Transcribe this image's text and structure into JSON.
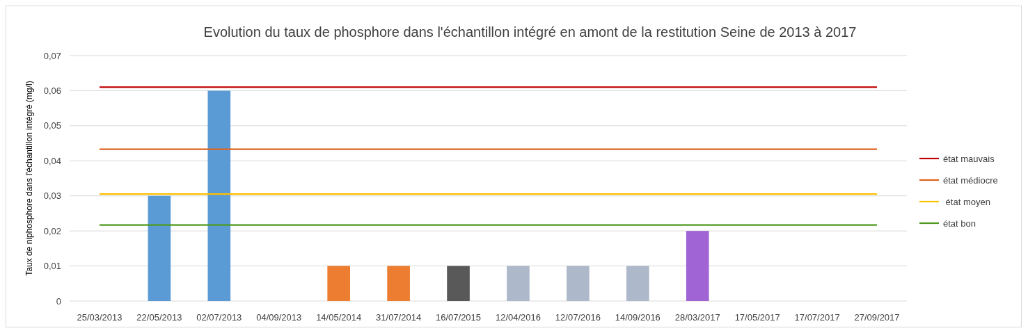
{
  "chart_data": {
    "type": "bar",
    "title": "Evolution du taux de phosphore dans l'échantillon intégré en amont de la restitution Seine de 2013 à 2017",
    "ylabel": "Taux de niphosphore dans l'échantillon intégré (mg/l)",
    "categories": [
      "25/03/2013",
      "22/05/2013",
      "02/07/2013",
      "04/09/2013",
      "14/05/2014",
      "31/07/2014",
      "16/07/2015",
      "12/04/2016",
      "12/07/2016",
      "14/09/2016",
      "28/03/2017",
      "17/05/2017",
      "17/07/2017",
      "27/09/2017"
    ],
    "series": [
      {
        "values": [
          0,
          0.03,
          0.06,
          0,
          0.01,
          0.01,
          0.01,
          0.01,
          0.01,
          0.01,
          0.02,
          0,
          0,
          0
        ],
        "colors": [
          "#5b9bd5",
          "#5b9bd5",
          "#5b9bd5",
          "#5b9bd5",
          "#ed7d31",
          "#ed7d31",
          "#595959",
          "#adb9ca",
          "#adb9ca",
          "#adb9ca",
          "#a064d4",
          "#a064d4",
          "#a064d4",
          "#a064d4"
        ]
      },
      {
        "type": "line",
        "name": "état mauvais",
        "color": "#c00000",
        "values": [
          0.061,
          0.061,
          0.061,
          0.061,
          0.061,
          0.061,
          0.061,
          0.061,
          0.061,
          0.061,
          0.061,
          0.061,
          0.061,
          0.061
        ]
      },
      {
        "type": "line",
        "name": "état médiocre",
        "color": "#e0621b",
        "values": [
          0.0433,
          0.0433,
          0.0433,
          0.0433,
          0.0433,
          0.0433,
          0.0433,
          0.0433,
          0.0433,
          0.0433,
          0.0433,
          0.0433,
          0.0433,
          0.0433
        ]
      },
      {
        "type": "line",
        "name": " état moyen",
        "color": "#ffc000",
        "values": [
          0.0305,
          0.0305,
          0.0305,
          0.0305,
          0.0305,
          0.0305,
          0.0305,
          0.0305,
          0.0305,
          0.0305,
          0.0305,
          0.0305,
          0.0305,
          0.0305
        ]
      },
      {
        "type": "line",
        "name": "état bon",
        "color": "#4e9a1e",
        "values": [
          0.0217,
          0.0217,
          0.0217,
          0.0217,
          0.0217,
          0.0217,
          0.0217,
          0.0217,
          0.0217,
          0.0217,
          0.0217,
          0.0217,
          0.0217,
          0.0217
        ]
      }
    ],
    "ylim": [
      0,
      0.07
    ],
    "yticks": [
      0,
      {
        "value": 0.01,
        "label": "0,01"
      },
      {
        "value": 0.02,
        "label": "0,02"
      },
      {
        "value": 0.03,
        "label": "0,03"
      },
      {
        "value": 0.04,
        "label": "0,04"
      },
      {
        "value": 0.05,
        "label": "0,05"
      },
      {
        "value": 0.06,
        "label": "0,06"
      },
      {
        "value": 0.07,
        "label": "0,07"
      }
    ],
    "grid": "y",
    "legend": "right"
  }
}
